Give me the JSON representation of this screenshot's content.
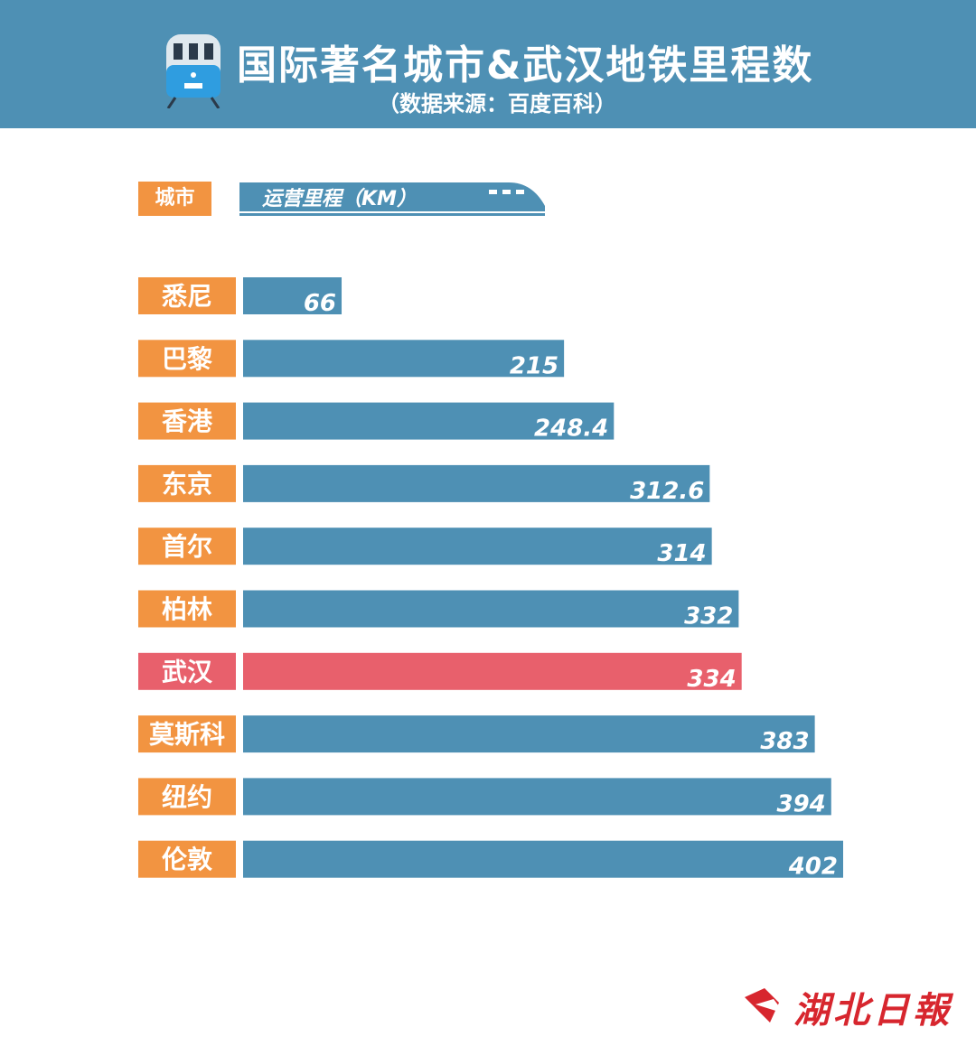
{
  "header": {
    "title": "国际著名城市&武汉地铁里程数",
    "subtitle": "（数据来源：百度百科）"
  },
  "legend": {
    "city_label": "城市",
    "value_label": "运营里程（KM）"
  },
  "brand": {
    "name": "湖北日報"
  },
  "colors": {
    "header_bg": "#4e90b4",
    "bar": "#4e90b4",
    "bar_highlight": "#e8606c",
    "label_bg": "#f29441",
    "label_highlight_bg": "#e8606c",
    "brand": "#d7262e"
  },
  "chart_data": {
    "type": "bar",
    "orientation": "horizontal",
    "title": "国际著名城市&武汉地铁里程数",
    "subtitle": "（数据来源：百度百科）",
    "categories": [
      "悉尼",
      "巴黎",
      "香港",
      "东京",
      "首尔",
      "柏林",
      "武汉",
      "莫斯科",
      "纽约",
      "伦敦"
    ],
    "values": [
      66,
      215,
      248.4,
      312.6,
      314,
      332,
      334,
      383,
      394,
      402
    ],
    "value_labels": [
      "66",
      "215",
      "248.4",
      "312.6",
      "314",
      "332",
      "334",
      "383",
      "394",
      "402"
    ],
    "highlight": "武汉",
    "xlabel": "运营里程（KM）",
    "ylabel": "城市",
    "xlim": [
      0,
      402
    ],
    "grid": false
  }
}
